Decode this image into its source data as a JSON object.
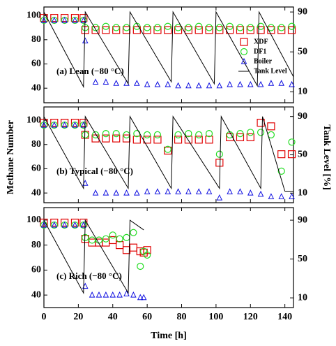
{
  "chart_data": [
    {
      "type": "scatter",
      "annotation": "(a) Lean (−80 °C)",
      "legend": "upper right",
      "xlim": [
        0,
        145
      ],
      "ylim": [
        28,
        107
      ],
      "yticks": [
        40,
        60,
        80,
        100
      ],
      "y2lim": [
        -1,
        95
      ],
      "y2ticks": [
        10,
        50,
        90
      ],
      "series": [
        {
          "name": "XDF",
          "color": "#e00000",
          "marker": "square",
          "x": [
            0,
            6,
            12,
            18,
            23,
            24,
            30,
            36,
            42,
            48,
            54,
            60,
            66,
            72,
            78,
            84,
            90,
            96,
            102,
            108,
            114,
            120,
            126,
            132,
            138,
            144
          ],
          "values": [
            98,
            98,
            98,
            98,
            98,
            88,
            88,
            88,
            88,
            88,
            88,
            88,
            88,
            88,
            88,
            88,
            88,
            88,
            88,
            88,
            88,
            88,
            88,
            88,
            88,
            88
          ]
        },
        {
          "name": "DF1",
          "color": "#22dd22",
          "marker": "circle",
          "x": [
            0,
            6,
            12,
            18,
            23,
            24,
            30,
            36,
            42,
            48,
            54,
            60,
            66,
            72,
            78,
            84,
            90,
            96,
            102,
            108,
            114,
            120,
            126,
            132,
            138,
            144
          ],
          "values": [
            96,
            96,
            96,
            96,
            96,
            90,
            90,
            91,
            90,
            90,
            91,
            90,
            90,
            91,
            90,
            90,
            91,
            90,
            90,
            91,
            90,
            90,
            91,
            90,
            90,
            91
          ]
        },
        {
          "name": "Boiler",
          "color": "#1010e0",
          "marker": "triangle",
          "x": [
            0,
            6,
            12,
            18,
            23,
            24,
            30,
            36,
            42,
            48,
            54,
            60,
            66,
            72,
            78,
            84,
            90,
            96,
            102,
            108,
            114,
            120,
            126,
            132,
            138,
            144
          ],
          "values": [
            96,
            96,
            96,
            96,
            96,
            79,
            45,
            45,
            44,
            44,
            44,
            43,
            43,
            43,
            42,
            42,
            42,
            42,
            42,
            43,
            43,
            43,
            43,
            44,
            44,
            43
          ]
        },
        {
          "name": "Tank Level",
          "color": "#000000",
          "marker": "line",
          "axis": "y2",
          "x": [
            0,
            23,
            24,
            49,
            50,
            74,
            75,
            99,
            100,
            124,
            125,
            145
          ],
          "values": [
            90,
            15,
            90,
            18,
            90,
            20,
            90,
            18,
            90,
            16,
            90,
            25
          ]
        }
      ]
    },
    {
      "type": "scatter",
      "annotation": "(b) Typical (−80 °C)",
      "ylabel": "Methane Number",
      "y2label": "Tank Level [%]",
      "xlim": [
        0,
        145
      ],
      "ylim": [
        32,
        111
      ],
      "yticks": [
        40,
        60,
        80,
        100
      ],
      "y2lim": [
        0,
        100
      ],
      "y2ticks": [
        10,
        50,
        90
      ],
      "series": [
        {
          "name": "XDF",
          "color": "#e00000",
          "marker": "square",
          "x": [
            0,
            6,
            12,
            18,
            23,
            24,
            30,
            36,
            42,
            48,
            54,
            60,
            66,
            72,
            78,
            84,
            90,
            96,
            102,
            108,
            114,
            120,
            126,
            132,
            138,
            144
          ],
          "values": [
            98,
            98,
            98,
            98,
            98,
            88,
            85,
            85,
            85,
            85,
            84,
            84,
            84,
            75,
            84,
            84,
            84,
            84,
            65,
            86,
            86,
            86,
            98,
            95,
            72,
            72
          ]
        },
        {
          "name": "DF1",
          "color": "#22dd22",
          "marker": "circle",
          "x": [
            0,
            6,
            12,
            18,
            23,
            24,
            30,
            36,
            42,
            48,
            54,
            60,
            66,
            72,
            78,
            84,
            90,
            96,
            102,
            108,
            114,
            120,
            126,
            132,
            138,
            144
          ],
          "values": [
            96,
            96,
            96,
            96,
            96,
            88,
            88,
            89,
            89,
            88,
            89,
            88,
            88,
            76,
            88,
            89,
            88,
            89,
            72,
            88,
            89,
            90,
            90,
            88,
            58,
            82
          ]
        },
        {
          "name": "Boiler",
          "color": "#1010e0",
          "marker": "triangle",
          "x": [
            0,
            6,
            12,
            18,
            23,
            24,
            30,
            36,
            42,
            48,
            54,
            60,
            66,
            72,
            78,
            84,
            90,
            96,
            102,
            108,
            114,
            120,
            126,
            132,
            138,
            144
          ],
          "values": [
            96,
            96,
            96,
            96,
            96,
            48,
            40,
            40,
            40,
            40,
            40,
            41,
            41,
            41,
            41,
            41,
            41,
            41,
            36,
            41,
            41,
            40,
            39,
            37,
            37,
            37
          ]
        },
        {
          "name": "Tank Level",
          "color": "#000000",
          "marker": "line",
          "axis": "y2",
          "x": [
            0,
            23,
            24,
            49,
            50,
            74,
            75,
            102,
            103,
            126,
            127,
            140,
            145
          ],
          "values": [
            90,
            15,
            90,
            15,
            90,
            15,
            90,
            15,
            90,
            15,
            90,
            12,
            12
          ]
        }
      ]
    },
    {
      "type": "scatter",
      "annotation": "(c) Rich (−80 °C)",
      "xlabel": "Time [h]",
      "xlim": [
        0,
        145
      ],
      "xticks": [
        0,
        20,
        40,
        60,
        80,
        100,
        120,
        140
      ],
      "ylim": [
        30,
        110
      ],
      "yticks": [
        40,
        60,
        80,
        100
      ],
      "y2lim": [
        0,
        103
      ],
      "y2ticks": [
        10,
        50,
        90
      ],
      "series": [
        {
          "name": "XDF",
          "color": "#e00000",
          "marker": "square",
          "x": [
            0,
            6,
            12,
            18,
            23,
            24,
            28,
            32,
            36,
            40,
            44,
            48,
            52,
            56,
            58,
            60
          ],
          "values": [
            98,
            98,
            98,
            98,
            98,
            85,
            82,
            82,
            82,
            84,
            80,
            76,
            78,
            75,
            74,
            76
          ]
        },
        {
          "name": "DF1",
          "color": "#22dd22",
          "marker": "circle",
          "x": [
            0,
            6,
            12,
            18,
            23,
            24,
            28,
            32,
            36,
            40,
            44,
            48,
            52,
            56,
            58,
            60
          ],
          "values": [
            96,
            96,
            96,
            96,
            96,
            86,
            84,
            84,
            85,
            88,
            85,
            86,
            90,
            63,
            75,
            72
          ]
        },
        {
          "name": "Boiler",
          "color": "#1010e0",
          "marker": "triangle",
          "x": [
            0,
            6,
            12,
            18,
            23,
            24,
            28,
            32,
            36,
            40,
            44,
            48,
            52,
            56,
            58
          ],
          "values": [
            96,
            96,
            96,
            96,
            96,
            47,
            40,
            40,
            40,
            40,
            40,
            41,
            40,
            38,
            38
          ]
        },
        {
          "name": "Tank Level",
          "color": "#000000",
          "marker": "line",
          "axis": "y2",
          "x": [
            0,
            23,
            24,
            49,
            50,
            58
          ],
          "values": [
            90,
            15,
            90,
            15,
            90,
            80
          ]
        }
      ]
    }
  ]
}
